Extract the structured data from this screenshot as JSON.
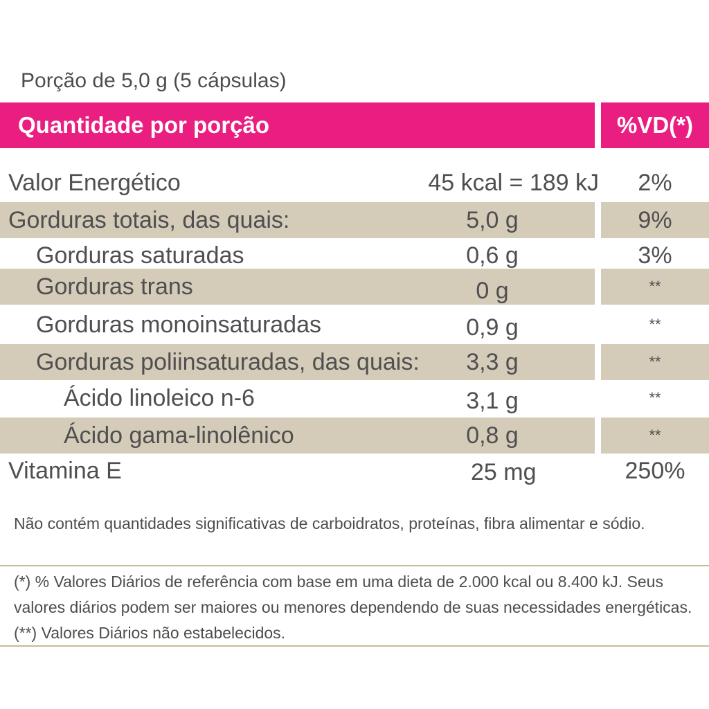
{
  "portion": "Porção de 5,0 g (5 cápsulas)",
  "header": {
    "quantity_label": "Quantidade por porção",
    "vd_label": "%VD(*)"
  },
  "rows": [
    {
      "label": "Valor Energético",
      "amount": "45 kcal = 189 kJ",
      "vd": "2%"
    },
    {
      "label": "Gorduras totais, das quais:",
      "amount": "5,0 g",
      "vd": "9%"
    },
    {
      "label": "Gorduras saturadas",
      "amount": "0,6 g",
      "vd": "3%"
    },
    {
      "label": "Gorduras trans",
      "amount": "0 g",
      "vd": "**"
    },
    {
      "label": "Gorduras monoinsaturadas",
      "amount": "0,9 g",
      "vd": "**"
    },
    {
      "label": "Gorduras poliinsaturadas, das quais:",
      "amount": "3,3 g",
      "vd": "**"
    },
    {
      "label": "Ácido linoleico n-6",
      "amount": "3,1 g",
      "vd": "**"
    },
    {
      "label": "Ácido gama-linolênico",
      "amount": "0,8 g",
      "vd": "**"
    },
    {
      "label": "Vitamina E",
      "amount": "25 mg",
      "vd": "250%"
    }
  ],
  "notes": {
    "not_contains": "Não contém quantidades significativas de carboidratos, proteínas, fibra alimentar e sódio.",
    "footnote": "(*) % Valores Diários de referência com base em uma dieta de 2.000 kcal ou 8.400 kJ. Seus valores diários podem ser maiores ou menores dependendo de suas necessidades energéticas. (**) Valores Diários não estabelecidos."
  },
  "colors": {
    "header_pink": "#e91e80",
    "shade_beige": "#d4cbb9",
    "text_gray": "#4f4f4f"
  }
}
